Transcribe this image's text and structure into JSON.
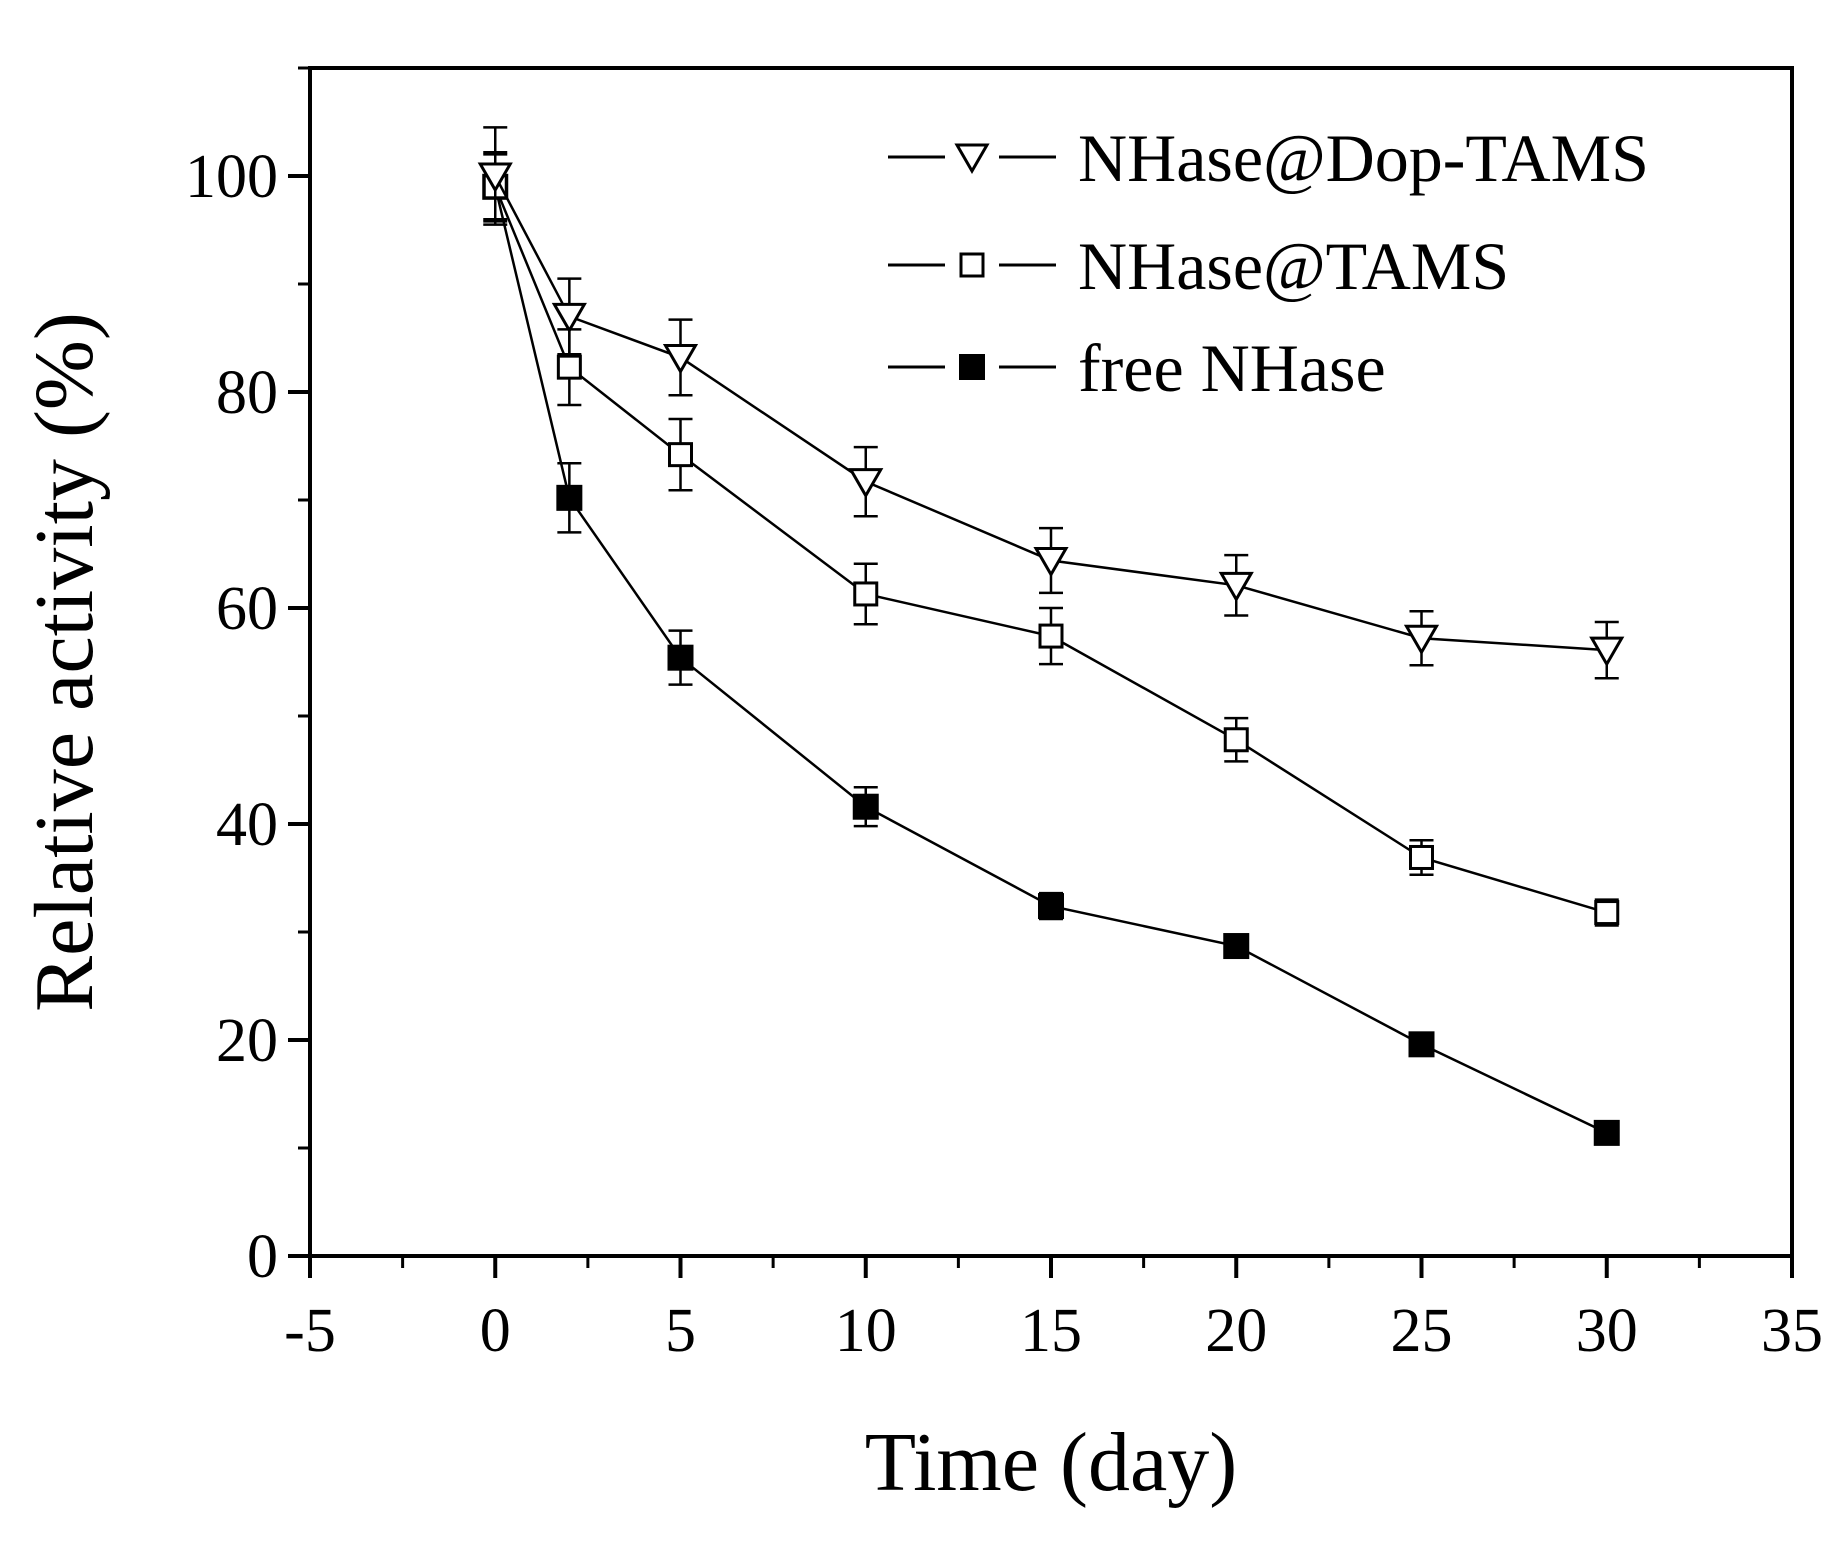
{
  "chart_data": {
    "type": "line",
    "title": "",
    "xlabel": "Time (day)",
    "ylabel": "Relative activity (%)",
    "xlim": [
      -5,
      35
    ],
    "ylim": [
      0,
      110
    ],
    "x_ticks": [
      "-5",
      "0",
      "5",
      "10",
      "15",
      "20",
      "25",
      "30",
      "35"
    ],
    "x_tick_values": [
      -5,
      0,
      5,
      10,
      15,
      20,
      25,
      30,
      35
    ],
    "y_ticks": [
      "0",
      "20",
      "40",
      "60",
      "80",
      "100"
    ],
    "y_tick_values": [
      0,
      20,
      40,
      60,
      80,
      100
    ],
    "x_minor_step": 2.5,
    "y_minor_step": 10,
    "grid": false,
    "legend_position": "top-right",
    "series": [
      {
        "name": "NHase@Dop-TAMS",
        "marker": "open-triangle-down",
        "x": [
          0,
          2,
          5,
          10,
          15,
          20,
          25,
          30
        ],
        "y": [
          100,
          87,
          83.2,
          71.7,
          64.4,
          62.1,
          57.2,
          56.1
        ],
        "err": [
          4.5,
          3.5,
          3.5,
          3.2,
          3.0,
          2.8,
          2.5,
          2.6
        ]
      },
      {
        "name": "NHase@TAMS",
        "marker": "open-square",
        "x": [
          0,
          2,
          5,
          10,
          15,
          20,
          25,
          30
        ],
        "y": [
          99,
          82.3,
          74.2,
          61.3,
          57.4,
          47.8,
          36.9,
          31.8
        ],
        "err": [
          3.2,
          3.5,
          3.3,
          2.8,
          2.6,
          2.0,
          1.6,
          1.2
        ]
      },
      {
        "name": "free NHase",
        "marker": "filled-square",
        "x": [
          0,
          2,
          5,
          10,
          15,
          20,
          25,
          30
        ],
        "y": [
          99,
          70.2,
          55.4,
          41.6,
          32.4,
          28.7,
          19.6,
          11.4
        ],
        "err": [
          3.0,
          3.2,
          2.5,
          1.8,
          1.2,
          0.8,
          0.6,
          0.5
        ]
      }
    ],
    "colors": {
      "line": "#000000",
      "marker_fill_open": "#ffffff",
      "marker_fill_filled": "#000000"
    }
  }
}
